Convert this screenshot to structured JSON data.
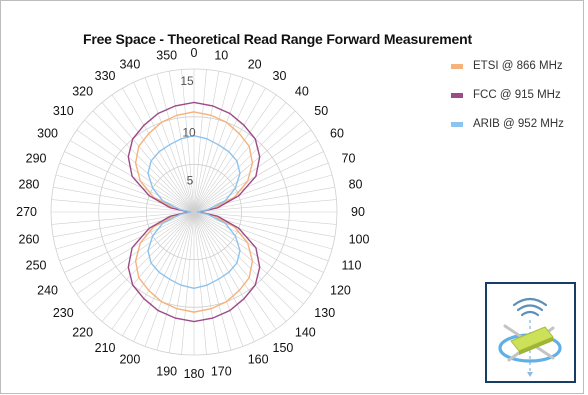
{
  "chart_data": {
    "type": "polar-line",
    "title": "Free Space - Theoretical Read Range Forward Measurement",
    "angle_ticks": [
      0,
      10,
      20,
      30,
      40,
      50,
      60,
      70,
      80,
      90,
      100,
      110,
      120,
      130,
      140,
      150,
      160,
      170,
      180,
      190,
      200,
      210,
      220,
      230,
      240,
      250,
      260,
      270,
      280,
      290,
      300,
      310,
      320,
      330,
      340,
      350
    ],
    "radial_ticks": [
      5,
      10,
      15
    ],
    "rlim": [
      0,
      15
    ],
    "angle_unit": "degrees",
    "grid": true,
    "legend_position": "right",
    "series": [
      {
        "name": "ETSI @ 866 MHz",
        "color": "#f6b27b",
        "angles": [
          0,
          10,
          20,
          30,
          40,
          50,
          60,
          70,
          80,
          90,
          100,
          110,
          120,
          130,
          140,
          150,
          160,
          170,
          180,
          190,
          200,
          210,
          220,
          230,
          240,
          250,
          260,
          270,
          280,
          290,
          300,
          310,
          320,
          330,
          340,
          350
        ],
        "values": [
          10.5,
          10.3,
          10.0,
          9.5,
          9.0,
          8.0,
          6.5,
          4.5,
          2.0,
          0.5,
          2.0,
          4.5,
          6.5,
          8.0,
          9.0,
          9.5,
          10.0,
          10.3,
          10.5,
          10.3,
          10.0,
          9.5,
          9.0,
          8.0,
          6.5,
          4.5,
          2.0,
          0.5,
          2.0,
          4.5,
          6.5,
          8.0,
          9.0,
          9.5,
          10.0,
          10.3
        ]
      },
      {
        "name": "FCC @ 915 MHz",
        "color": "#9d4a88",
        "angles": [
          0,
          10,
          20,
          30,
          40,
          50,
          60,
          70,
          80,
          90,
          100,
          110,
          120,
          130,
          140,
          150,
          160,
          170,
          180,
          190,
          200,
          210,
          220,
          230,
          240,
          250,
          260,
          270,
          280,
          290,
          300,
          310,
          320,
          330,
          340,
          350
        ],
        "values": [
          11.5,
          11.3,
          11.0,
          10.5,
          10.0,
          9.0,
          7.5,
          5.0,
          2.5,
          0.5,
          2.5,
          5.0,
          7.5,
          9.0,
          10.0,
          10.5,
          11.0,
          11.3,
          11.5,
          11.3,
          11.0,
          10.5,
          10.0,
          9.0,
          7.5,
          5.0,
          2.5,
          0.5,
          2.5,
          5.0,
          7.5,
          9.0,
          10.0,
          10.5,
          11.0,
          11.3
        ]
      },
      {
        "name": "ARIB @ 952 MHz",
        "color": "#8cc3ef",
        "angles": [
          0,
          10,
          20,
          30,
          40,
          50,
          60,
          70,
          80,
          90,
          100,
          110,
          120,
          130,
          140,
          150,
          160,
          170,
          180,
          190,
          200,
          210,
          220,
          230,
          240,
          250,
          260,
          270,
          280,
          290,
          300,
          310,
          320,
          330,
          340,
          350
        ],
        "values": [
          8.0,
          7.8,
          7.5,
          7.3,
          7.0,
          6.3,
          5.0,
          3.5,
          1.5,
          0.3,
          1.5,
          3.5,
          5.0,
          6.3,
          7.0,
          7.3,
          7.5,
          7.8,
          8.0,
          7.8,
          7.5,
          7.3,
          7.0,
          6.3,
          5.0,
          3.5,
          1.5,
          0.3,
          1.5,
          3.5,
          5.0,
          6.3,
          7.0,
          7.3,
          7.5,
          7.8
        ]
      }
    ]
  },
  "colors": {
    "grid": "#cfcfcf",
    "panel_border": "#173d66",
    "antenna_waves": "#5d8fb8",
    "antenna_ring": "#5fb0e6",
    "antenna_tag": "#cde05a"
  },
  "icons": {
    "antenna_panel": "rfid-antenna-field-icon"
  }
}
